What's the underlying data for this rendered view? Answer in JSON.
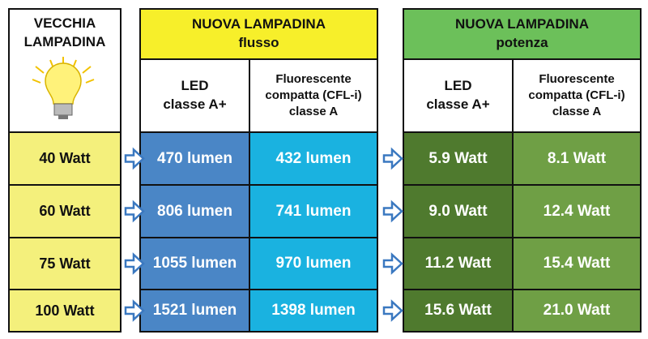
{
  "old_bulb": {
    "title": "VECCHIA LAMPADINA",
    "rows": [
      "40 Watt",
      "60 Watt",
      "75 Watt",
      "100 Watt"
    ]
  },
  "flux": {
    "title": "NUOVA LAMPADINA",
    "subtitle": "flusso",
    "columns": [
      [
        "LED",
        "classe A+"
      ],
      [
        "Fluorescente",
        "compatta (CFL-i)",
        "classe A"
      ]
    ],
    "rows": [
      [
        "470 lumen",
        "432 lumen"
      ],
      [
        "806 lumen",
        "741 lumen"
      ],
      [
        "1055 lumen",
        "970 lumen"
      ],
      [
        "1521 lumen",
        "1398 lumen"
      ]
    ]
  },
  "power": {
    "title": "NUOVA LAMPADINA",
    "subtitle": "potenza",
    "columns": [
      [
        "LED",
        "classe A+"
      ],
      [
        "Fluorescente",
        "compatta (CFL-i)",
        "classe A"
      ]
    ],
    "rows": [
      [
        "5.9 Watt",
        "8.1 Watt"
      ],
      [
        "9.0 Watt",
        "12.4 Watt"
      ],
      [
        "11.2 Watt",
        "15.4 Watt"
      ],
      [
        "15.6 Watt",
        "21.0 Watt"
      ]
    ]
  }
}
